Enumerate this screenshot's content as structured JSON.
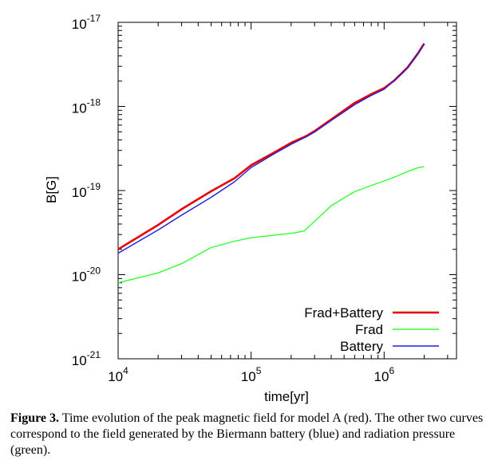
{
  "chart_data": {
    "type": "line",
    "xlabel": "time[yr]",
    "ylabel": "B[G]",
    "x_scale": "log",
    "y_scale": "log",
    "xlim": [
      10000,
      3500000
    ],
    "ylim": [
      1e-21,
      1e-17
    ],
    "x_ticks": [
      {
        "value": 10000,
        "mantissa": "10",
        "exp": "4"
      },
      {
        "value": 100000,
        "mantissa": "10",
        "exp": "5"
      },
      {
        "value": 1000000,
        "mantissa": "10",
        "exp": "6"
      }
    ],
    "y_ticks": [
      {
        "value": 1e-21,
        "mantissa": "10",
        "exp": "-21"
      },
      {
        "value": 1e-20,
        "mantissa": "10",
        "exp": "-20"
      },
      {
        "value": 1e-19,
        "mantissa": "10",
        "exp": "-19"
      },
      {
        "value": 1e-18,
        "mantissa": "10",
        "exp": "-18"
      },
      {
        "value": 1e-17,
        "mantissa": "10",
        "exp": "-17"
      }
    ],
    "grid": false,
    "legend_position": "bottom-right",
    "series": [
      {
        "name": "Frad+Battery",
        "color": "#e60000",
        "x": [
          10000,
          20000,
          30000,
          50000,
          75000,
          100000,
          150000,
          200000,
          260000,
          300000,
          400000,
          600000,
          800000,
          1000000,
          1200000,
          1500000,
          1800000,
          2000000
        ],
        "y": [
          2e-20,
          3.9e-20,
          6e-20,
          9.8e-20,
          1.4e-19,
          2e-19,
          2.85e-19,
          3.7e-19,
          4.45e-19,
          5.1e-19,
          7e-19,
          1.1e-18,
          1.4e-18,
          1.65e-18,
          2.05e-18,
          2.9e-18,
          4.3e-18,
          5.6e-18
        ]
      },
      {
        "name": "Frad",
        "color": "#33ff33",
        "x": [
          10000,
          20000,
          30000,
          50000,
          75000,
          100000,
          150000,
          200000,
          250000,
          300000,
          400000,
          600000,
          800000,
          1000000,
          1200000,
          1500000,
          1800000,
          2000000
        ],
        "y": [
          8e-21,
          1.05e-20,
          1.35e-20,
          2.1e-20,
          2.5e-20,
          2.75e-20,
          2.95e-20,
          3.1e-20,
          3.3e-20,
          4.3e-20,
          6.6e-20,
          9.7e-20,
          1.15e-19,
          1.3e-19,
          1.45e-19,
          1.68e-19,
          1.87e-19,
          1.93e-19
        ]
      },
      {
        "name": "Battery",
        "color": "#1f1fe0",
        "x": [
          10000,
          20000,
          30000,
          50000,
          75000,
          100000,
          150000,
          200000,
          260000,
          300000,
          400000,
          600000,
          800000,
          1000000,
          1200000,
          1500000,
          1800000,
          2000000
        ],
        "y": [
          1.8e-20,
          3.4e-20,
          5.1e-20,
          8.3e-20,
          1.27e-19,
          1.88e-19,
          2.75e-19,
          3.55e-19,
          4.35e-19,
          4.95e-19,
          6.8e-19,
          1.05e-18,
          1.35e-18,
          1.6e-18,
          2.05e-18,
          2.9e-18,
          4.3e-18,
          5.5e-18
        ]
      }
    ]
  },
  "caption": {
    "label": "Figure 3.",
    "text": " Time evolution of the peak magnetic field for model A (red). The other two curves correspond to the field generated by the Biermann battery (blue) and radiation pressure (green)."
  }
}
